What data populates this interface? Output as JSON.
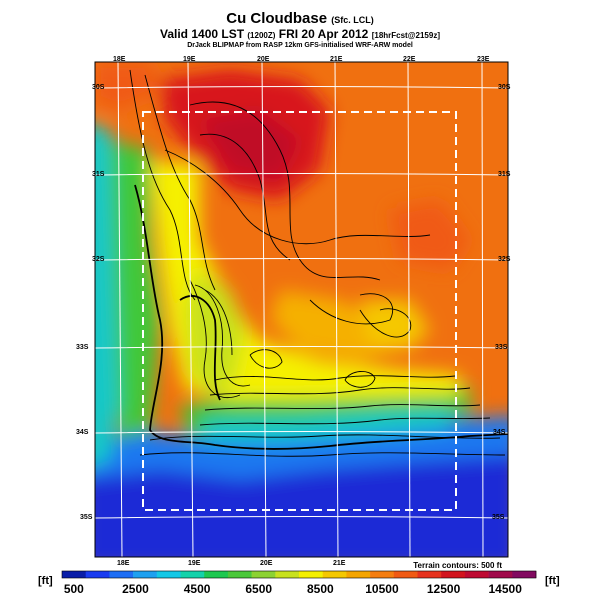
{
  "header": {
    "title": "Cu Cloudbase",
    "title_suffix": "(Sfc. LCL)",
    "valid_line": "Valid 1400 LST",
    "valid_small": "(1200Z)",
    "valid_date": "FRI 20 Apr 2012",
    "valid_fcst": "[18hrFcst@2159z]",
    "credits": "DrJack BLIPMAP from RASP 12km GFS-initialised WRF-ARW model"
  },
  "map": {
    "lon_top": [
      "18E",
      "19E",
      "20E",
      "21E",
      "22E",
      "23E"
    ],
    "lon_bottom": [
      "18E",
      "19E",
      "20E",
      "21E"
    ],
    "lat_left": [
      "30S",
      "31S",
      "32S",
      "33S",
      "34S",
      "35S"
    ],
    "lat_right": [
      "30S",
      "31S",
      "32S",
      "33S",
      "34S",
      "35S"
    ],
    "terrain_note": "Terrain contours: 500 ft",
    "colors": {
      "ocean_low": "#1a2bd6",
      "mid_cyan": "#18c8c8",
      "green": "#3fc83a",
      "yellow": "#f5f000",
      "orange": "#f07010",
      "red_high": "#d8141a"
    }
  },
  "colorbar": {
    "unit_left": "[ft]",
    "unit_right": "[ft]",
    "labels": [
      "500",
      "2500",
      "4500",
      "6500",
      "8500",
      "10500",
      "12500",
      "14500"
    ],
    "colors": [
      "#0a1ea8",
      "#1a3cf0",
      "#1e6ef5",
      "#1ea0f0",
      "#14c8e6",
      "#14d2aa",
      "#1ec850",
      "#4bc83a",
      "#8cd232",
      "#c8e11e",
      "#f5f000",
      "#f5c800",
      "#f5a500",
      "#f57d10",
      "#f05a14",
      "#e6321e",
      "#d2141e",
      "#be0a32",
      "#a00a4b",
      "#820a60"
    ]
  }
}
